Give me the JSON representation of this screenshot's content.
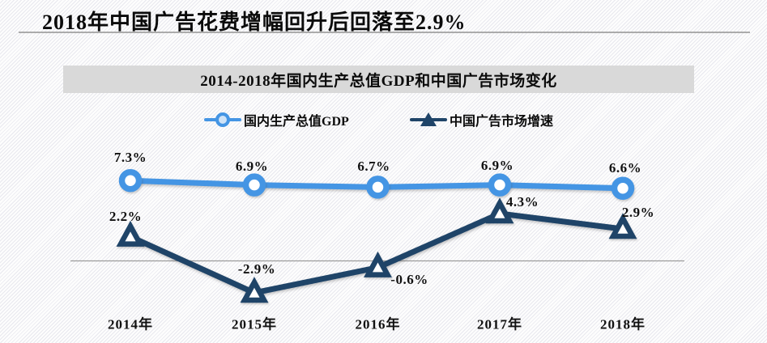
{
  "page_title": "2018年中国广告花费增幅回升后回落至2.9%",
  "chart": {
    "title": "2014-2018年国内生产总值GDP和中国广告市场变化",
    "legend": [
      {
        "label": "国内生产总值GDP",
        "marker": "circle-marker",
        "color": "#4495e4"
      },
      {
        "label": "中国广告市场增速",
        "marker": "triangle-marker",
        "color": "#1f4468"
      }
    ]
  },
  "chart_data": {
    "type": "line",
    "categories": [
      "2014年",
      "2015年",
      "2016年",
      "2017年",
      "2018年"
    ],
    "series": [
      {
        "name": "国内生产总值GDP",
        "values": [
          7.3,
          6.9,
          6.7,
          6.9,
          6.6
        ],
        "labels": [
          "7.3%",
          "6.9%",
          "6.7%",
          "6.9%",
          "6.6%"
        ],
        "color": "#4495e4",
        "marker": "circle"
      },
      {
        "name": "中国广告市场增速",
        "values": [
          2.2,
          -2.9,
          -0.6,
          4.3,
          2.9
        ],
        "labels": [
          "2.2%",
          "-2.9%",
          "-0.6%",
          "4.3%",
          "2.9%"
        ],
        "color": "#1f4468",
        "marker": "triangle"
      }
    ],
    "title": "2014-2018年国内生产总值GDP和中国广告市场变化",
    "xlabel": "",
    "ylabel": "",
    "ylim": [
      -4,
      9
    ],
    "grid": false,
    "zero_axis_line": true,
    "legend_position": "top"
  }
}
